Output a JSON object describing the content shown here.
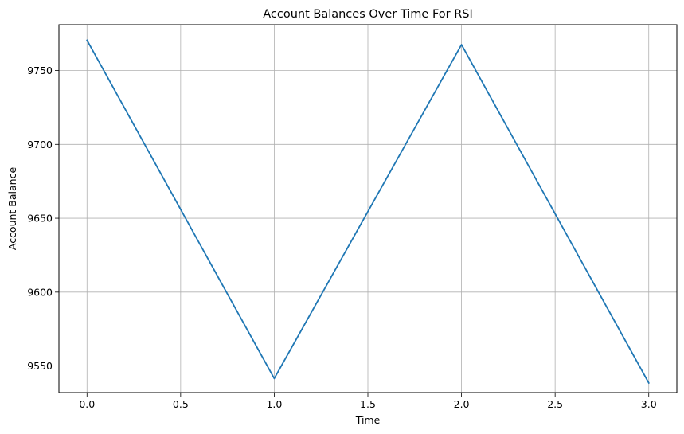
{
  "chart_data": {
    "type": "line",
    "title": "Account Balances Over Time For RSI",
    "xlabel": "Time",
    "ylabel": "Account Balance",
    "xlim": [
      -0.15,
      3.15
    ],
    "ylim": [
      9532,
      9781
    ],
    "xticks": [
      0.0,
      0.5,
      1.0,
      1.5,
      2.0,
      2.5,
      3.0
    ],
    "xtick_labels": [
      "0.0",
      "0.5",
      "1.0",
      "1.5",
      "2.0",
      "2.5",
      "3.0"
    ],
    "yticks": [
      9550,
      9600,
      9650,
      9700,
      9750
    ],
    "ytick_labels": [
      "9550",
      "9600",
      "9650",
      "9700",
      "9750"
    ],
    "grid": true,
    "series": [
      {
        "x": [
          0,
          1,
          2,
          3
        ],
        "values": [
          9770.5,
          9541.5,
          9767.5,
          9538.5
        ],
        "color": "#1f77b4"
      }
    ]
  }
}
